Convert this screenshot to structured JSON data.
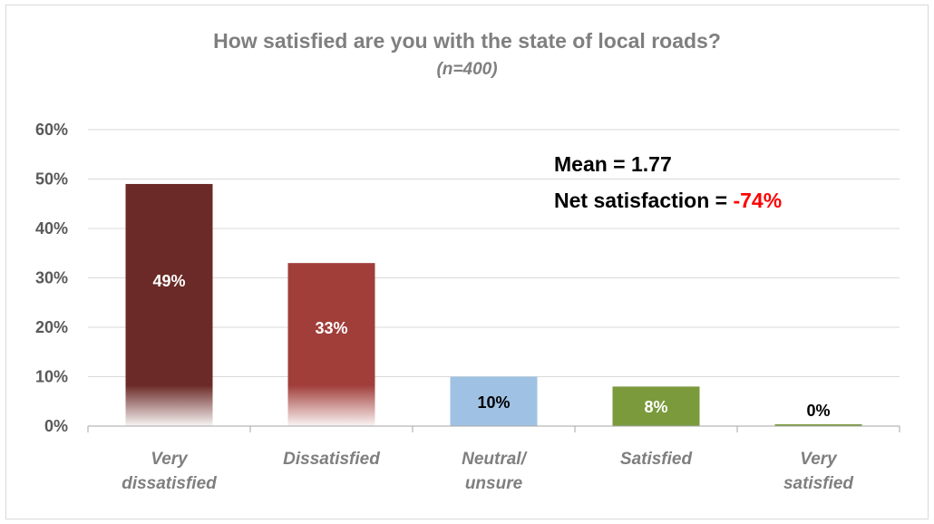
{
  "chart_data": {
    "type": "bar",
    "title": "How satisfied are you with the state of local roads?",
    "subtitle": "(n=400)",
    "categories": [
      [
        "Very",
        "dissatisfied"
      ],
      [
        "Dissatisfied"
      ],
      [
        "Neutral/",
        "unsure"
      ],
      [
        "Satisfied"
      ],
      [
        "Very",
        "satisfied"
      ]
    ],
    "values": [
      49,
      33,
      10,
      8,
      0
    ],
    "value_labels": [
      "49%",
      "33%",
      "10%",
      "8%",
      "0%"
    ],
    "colors": [
      "#6b2a27",
      "#a13e3a",
      "#9fc2e4",
      "#7a9a3c",
      "#7a9a3c"
    ],
    "label_colors": [
      "#ffffff",
      "#ffffff",
      "#000000",
      "#ffffff",
      "#000000"
    ],
    "yticks": [
      "0%",
      "10%",
      "20%",
      "30%",
      "40%",
      "50%",
      "60%"
    ],
    "ylim": [
      0,
      60
    ],
    "grid": true,
    "legend": "none",
    "annotation": {
      "mean_label": "Mean = 1.77",
      "net_label": "Net satisfaction  = ",
      "net_value": "-74%"
    }
  }
}
